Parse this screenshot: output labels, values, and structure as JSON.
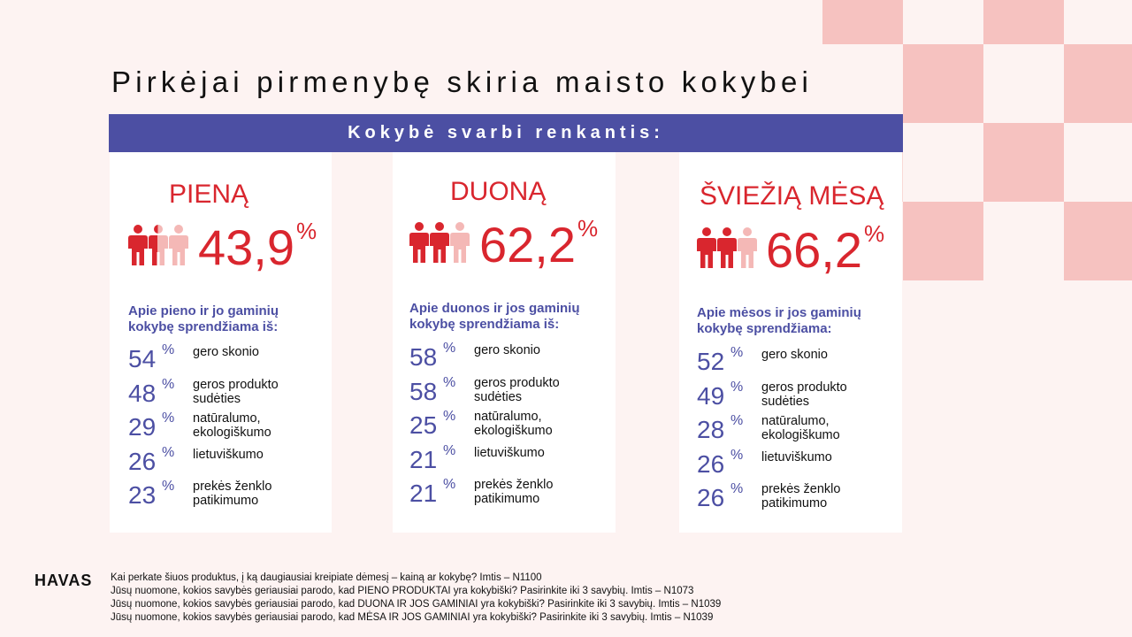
{
  "title": "Pirkėjai pirmenybę skiria maisto kokybei",
  "banner": "Kokybė svarbi renkantis:",
  "colors": {
    "accent_red": "#d9262e",
    "light_red": "#f4b8b6",
    "blue": "#4c4fa3",
    "pink_square": "#f6c2c0"
  },
  "cards": [
    {
      "category": "PIENĄ",
      "big_value": "43,9",
      "percent_sign": "%",
      "icons": [
        "person-full-icon",
        "person-partial-icon",
        "person-light-icon"
      ],
      "subhead_line1": "Apie pieno ir jo gaminių",
      "subhead_line2": "kokybę sprendžiama iš:",
      "rows": [
        {
          "value": "54",
          "p": "%",
          "line1": "gero skonio",
          "line2": ""
        },
        {
          "value": "48",
          "p": "%",
          "line1": "geros produkto",
          "line2": "sudėties"
        },
        {
          "value": "29",
          "p": "%",
          "line1": "natūralumo,",
          "line2": "ekologiškumo"
        },
        {
          "value": "26",
          "p": "%",
          "line1": "lietuviškumo",
          "line2": ""
        },
        {
          "value": "23",
          "p": "%",
          "line1": "prekės ženklo",
          "line2": "patikimumo"
        }
      ]
    },
    {
      "category": "DUONĄ",
      "big_value": "62,2",
      "percent_sign": "%",
      "icons": [
        "person-full-icon",
        "person-full-icon",
        "person-light-icon"
      ],
      "subhead_line1": "Apie duonos ir jos gaminių",
      "subhead_line2": "kokybę sprendžiama iš:",
      "rows": [
        {
          "value": "58",
          "p": "%",
          "line1": "gero skonio",
          "line2": ""
        },
        {
          "value": "58",
          "p": "%",
          "line1": "geros produkto",
          "line2": "sudėties"
        },
        {
          "value": "25",
          "p": "%",
          "line1": "natūralumo,",
          "line2": "ekologiškumo"
        },
        {
          "value": "21",
          "p": "%",
          "line1": "lietuviškumo",
          "line2": ""
        },
        {
          "value": "21",
          "p": "%",
          "line1": "prekės ženklo",
          "line2": "patikimumo"
        }
      ]
    },
    {
      "category": "ŠVIEŽIĄ MĖSĄ",
      "big_value": "66,2",
      "percent_sign": "%",
      "icons": [
        "person-full-icon",
        "person-full-icon",
        "person-light-icon"
      ],
      "subhead_line1": "Apie mėsos ir jos gaminių",
      "subhead_line2": "kokybę sprendžiama:",
      "rows": [
        {
          "value": "52",
          "p": "%",
          "line1": "gero skonio",
          "line2": ""
        },
        {
          "value": "49",
          "p": "%",
          "line1": "geros produkto",
          "line2": "sudėties"
        },
        {
          "value": "28",
          "p": "%",
          "line1": "natūralumo,",
          "line2": "ekologiškumo"
        },
        {
          "value": "26",
          "p": "%",
          "line1": "lietuviškumo",
          "line2": ""
        },
        {
          "value": "26",
          "p": "%",
          "line1": "prekės ženklo",
          "line2": "patikimumo"
        }
      ]
    }
  ],
  "logo": "HAVAS",
  "notes": [
    "Kai perkate šiuos produktus, į ką daugiausiai kreipiate dėmesį – kainą ar kokybę?  Imtis – N1100",
    "Jūsų nuomone, kokios savybės geriausiai parodo, kad PIENO PRODUKTAI yra kokybiški? Pasirinkite iki 3 savybių. Imtis – N1073",
    "Jūsų nuomone, kokios savybės geriausiai parodo, kad DUONA IR JOS GAMINIAI yra kokybiški? Pasirinkite iki 3 savybių. Imtis – N1039",
    "Jūsų nuomone, kokios savybės geriausiai parodo, kad MĖSA IR JOS GAMINIAI yra kokybiški? Pasirinkite iki 3 savybių. Imtis – N1039"
  ]
}
